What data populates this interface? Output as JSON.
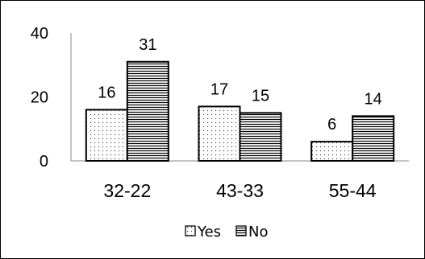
{
  "chart_data": {
    "type": "bar",
    "categories": [
      "32-22",
      "43-33",
      "55-44"
    ],
    "series": [
      {
        "name": "Yes",
        "values": [
          16,
          17,
          6
        ],
        "pattern": "dots"
      },
      {
        "name": "No",
        "values": [
          31,
          15,
          14
        ],
        "pattern": "horizontal-lines"
      }
    ],
    "ylim": [
      0,
      40
    ],
    "yticks": [
      0,
      20,
      40
    ],
    "grid": false,
    "legend_position": "bottom",
    "data_labels": true,
    "colors": {
      "bar_border": "#000000",
      "bar_fill": "#ffffff",
      "pattern": "#000000"
    }
  }
}
